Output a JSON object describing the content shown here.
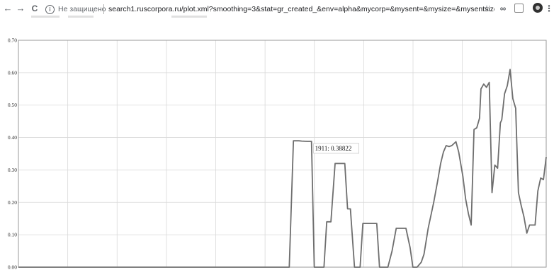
{
  "browser": {
    "nav_back_icon": "←",
    "nav_forward_icon": "→",
    "reload_icon": "C",
    "security_label": "Не защищено",
    "url": "search1.ruscorpora.ru/plot.xml?smoothing=3&stat=gr_created_&env=alpha&mycorp=&mysent=&mysize=&mysentsize=&mydocs...",
    "star_icon": "☆",
    "ext_icon": "∞",
    "menu_icon": "⋮"
  },
  "chart_data": {
    "type": "line",
    "ylim": [
      0,
      0.7
    ],
    "yticks": [
      "0.70",
      "0.60",
      "0.50",
      "0.40",
      "0.30",
      "0.20",
      "0.10",
      "0.00"
    ],
    "grid": true,
    "line_color": "#6e6e6e",
    "tooltip": {
      "text": "1911: 0.38822",
      "x": 1911,
      "y": 0.38822
    },
    "series": [
      {
        "values": [
          [
            1700,
            0
          ],
          [
            1895,
            0
          ],
          [
            1898,
            0.39
          ],
          [
            1902,
            0.39
          ],
          [
            1904,
            0.389
          ],
          [
            1908,
            0.38822
          ],
          [
            1911,
            0.38822
          ],
          [
            1913,
            0
          ],
          [
            1920,
            0
          ],
          [
            1922,
            0.14
          ],
          [
            1925,
            0.14
          ],
          [
            1928,
            0.32
          ],
          [
            1932,
            0.32
          ],
          [
            1935,
            0.32
          ],
          [
            1937,
            0.18
          ],
          [
            1939,
            0.18
          ],
          [
            1942,
            0
          ],
          [
            1946,
            0
          ],
          [
            1948,
            0.135
          ],
          [
            1951,
            0.135
          ],
          [
            1954,
            0.135
          ],
          [
            1958,
            0.135
          ],
          [
            1960,
            0
          ],
          [
            1966,
            0
          ],
          [
            1969,
            0.05
          ],
          [
            1972,
            0.12
          ],
          [
            1976,
            0.12
          ],
          [
            1979,
            0.12
          ],
          [
            1982,
            0.06
          ],
          [
            1984,
            0
          ],
          [
            1987,
            0
          ],
          [
            1990,
            0.015
          ],
          [
            1992,
            0.04
          ],
          [
            1995,
            0.12
          ],
          [
            1999,
            0.2
          ],
          [
            2002,
            0.27
          ],
          [
            2004,
            0.32
          ],
          [
            2006,
            0.355
          ],
          [
            2008,
            0.375
          ],
          [
            2010,
            0.372
          ],
          [
            2012,
            0.375
          ],
          [
            2015,
            0.387
          ],
          [
            2017,
            0.355
          ],
          [
            2020,
            0.28
          ],
          [
            2022,
            0.21
          ],
          [
            2024,
            0.165
          ],
          [
            2026,
            0.13
          ],
          [
            2028,
            0.425
          ],
          [
            2030,
            0.43
          ],
          [
            2032,
            0.46
          ],
          [
            2033,
            0.55
          ],
          [
            2035,
            0.565
          ],
          [
            2037,
            0.555
          ],
          [
            2039,
            0.57
          ],
          [
            2041,
            0.23
          ],
          [
            2043,
            0.315
          ],
          [
            2045,
            0.305
          ],
          [
            2047,
            0.445
          ],
          [
            2048,
            0.455
          ],
          [
            2050,
            0.535
          ],
          [
            2052,
            0.56
          ],
          [
            2054,
            0.61
          ],
          [
            2056,
            0.52
          ],
          [
            2058,
            0.49
          ],
          [
            2060,
            0.23
          ],
          [
            2062,
            0.19
          ],
          [
            2064,
            0.155
          ],
          [
            2066,
            0.105
          ],
          [
            2068,
            0.13
          ],
          [
            2072,
            0.13
          ],
          [
            2074,
            0.235
          ],
          [
            2076,
            0.275
          ],
          [
            2078,
            0.27
          ],
          [
            2080,
            0.34
          ]
        ]
      }
    ]
  }
}
